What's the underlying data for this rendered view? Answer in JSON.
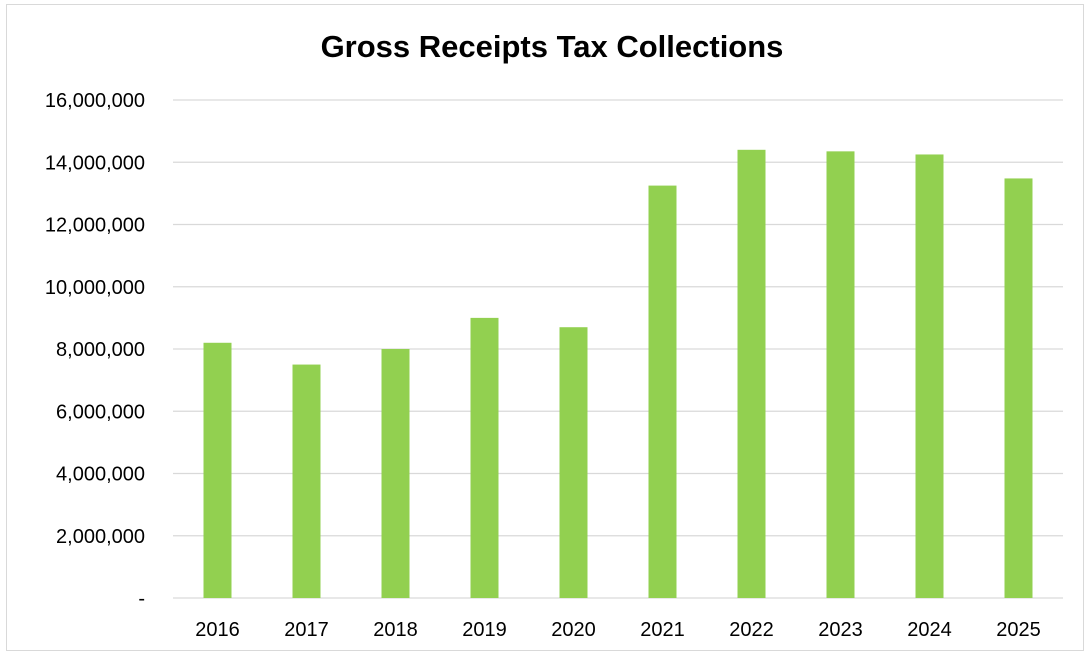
{
  "chart_data": {
    "type": "bar",
    "title": "Gross Receipts Tax Collections",
    "xlabel": "",
    "ylabel": "",
    "categories": [
      "2016",
      "2017",
      "2018",
      "2019",
      "2020",
      "2021",
      "2022",
      "2023",
      "2024",
      "2025"
    ],
    "values": [
      8200000,
      7500000,
      8000000,
      9000000,
      8700000,
      13250000,
      14400000,
      14350000,
      14250000,
      13480000
    ],
    "ylim": [
      0,
      16000000
    ],
    "yticks": [
      0,
      2000000,
      4000000,
      6000000,
      8000000,
      10000000,
      12000000,
      14000000,
      16000000
    ],
    "ytick_labels": [
      "-",
      "2,000,000",
      "4,000,000",
      "6,000,000",
      "8,000,000",
      "10,000,000",
      "12,000,000",
      "14,000,000",
      "16,000,000"
    ],
    "grid": true,
    "legend": "none",
    "colors": {
      "bar": "#92d050",
      "grid": "#d9d9d9",
      "axis": "#d9d9d9",
      "text": "#000000"
    }
  }
}
